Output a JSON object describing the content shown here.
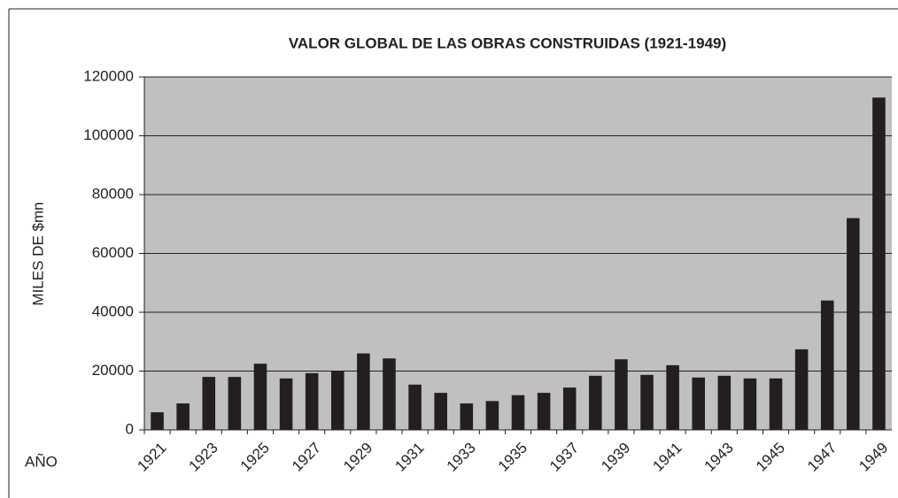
{
  "chart_data": {
    "type": "bar",
    "title": "VALOR GLOBAL DE LAS OBRAS CONSTRUIDAS (1921-1949)",
    "y_label": "MILES DE $mn",
    "x_label": "AÑO",
    "categories": [
      "1921",
      null,
      "1923",
      null,
      "1925",
      null,
      "1927",
      null,
      "1929",
      null,
      "1931",
      null,
      "1933",
      null,
      "1935",
      null,
      "1937",
      null,
      "1939",
      null,
      "1941",
      null,
      "1943",
      null,
      "1945",
      null,
      "1947",
      null,
      "1949"
    ],
    "values": [
      6000,
      9000,
      18000,
      18000,
      22500,
      17500,
      19300,
      20000,
      26000,
      24300,
      15400,
      12600,
      9000,
      9800,
      11800,
      12600,
      14400,
      18400,
      24000,
      18700,
      22000,
      17800,
      18400,
      17500,
      17500,
      27400,
      44000,
      72000,
      113000
    ],
    "color": "#231f20",
    "background": "#c0c0c0",
    "ylim": [
      0,
      120000
    ],
    "yticks": [
      0,
      20000,
      40000,
      60000,
      80000,
      100000,
      120000
    ],
    "grid": true
  }
}
